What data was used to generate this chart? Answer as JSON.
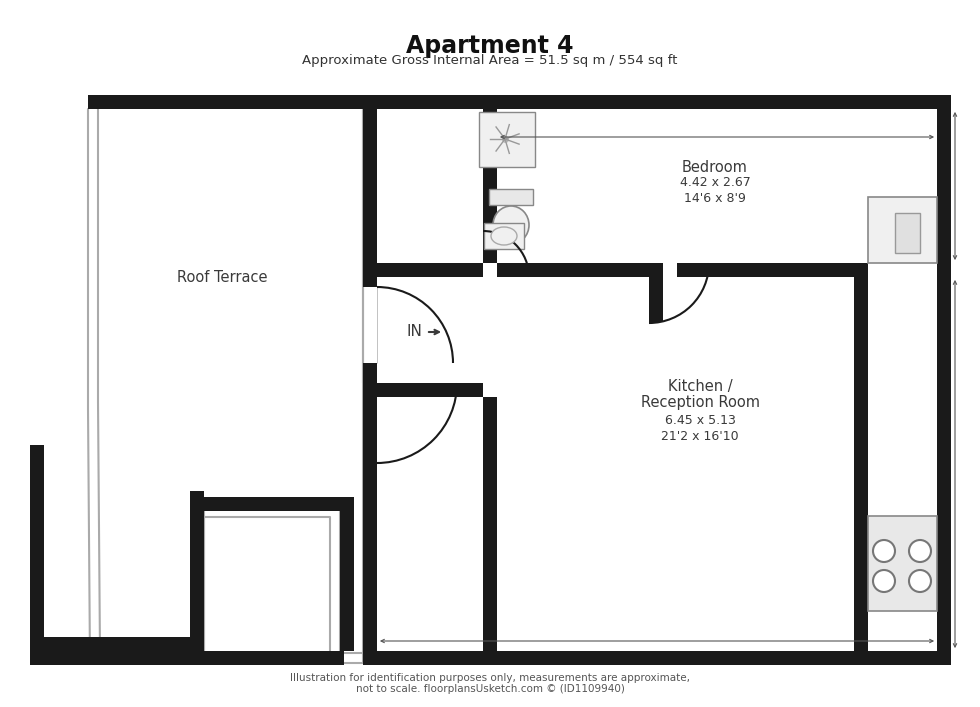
{
  "title": "Apartment 4",
  "subtitle": "Approximate Gross Internal Area = 51.5 sq m / 554 sq ft",
  "footer_line1": "Illustration for identification purposes only, measurements are approximate,",
  "footer_line2": "not to scale. floorplansUsketch.com © (ID1109940)",
  "bg_color": "#ffffff",
  "wall_color": "#1a1a1a",
  "thin_color": "#aaaaaa",
  "label_color": "#3a3a3a",
  "bedroom_label": "Bedroom",
  "bedroom_dim1": "4.42 x 2.67",
  "bedroom_dim2": "14'6 x 8'9",
  "kitchen_label1": "Kitchen /",
  "kitchen_label2": "Reception Room",
  "kitchen_dim1": "6.45 x 5.13",
  "kitchen_dim2": "21'2 x 16'10",
  "terrace_label": "Roof Terrace",
  "in_label": "IN"
}
